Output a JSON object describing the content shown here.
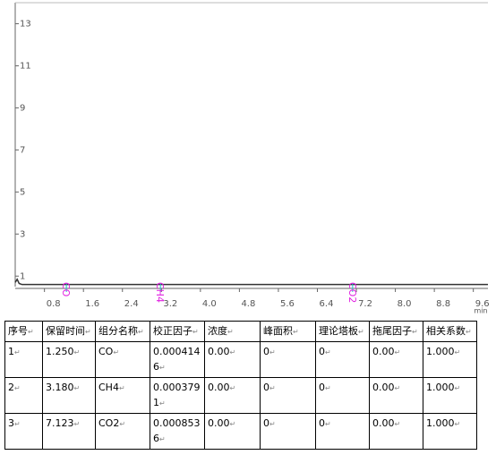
{
  "chart_data": {
    "type": "line",
    "x_label": "min",
    "xlim": [
      0.2,
      9.9
    ],
    "ylim": [
      0.5,
      14
    ],
    "xticks": [
      0.8,
      1.6,
      2.4,
      3.2,
      {
        "value": 4,
        "label": "4.0"
      },
      4.8,
      5.6,
      6.4,
      7.2,
      {
        "value": 8,
        "label": "8.0"
      },
      8.8,
      9.6
    ],
    "yticks": [
      1,
      3,
      5,
      7,
      9,
      11,
      13
    ],
    "series": [
      {
        "color": "#333333",
        "x": [
          0.2,
          0.24,
          0.28,
          0.34,
          0.5,
          1.0,
          2.0,
          3.0,
          4.0,
          5.0,
          6.0,
          7.0,
          8.0,
          9.0,
          9.9
        ],
        "values": [
          0.7,
          0.85,
          0.65,
          0.6,
          0.6,
          0.6,
          0.6,
          0.6,
          0.6,
          0.6,
          0.6,
          0.6,
          0.6,
          0.6,
          0.6
        ]
      }
    ],
    "annotations": [
      {
        "text": "CO",
        "x": 1.25
      },
      {
        "text": "CH4",
        "x": 3.18
      },
      {
        "text": "CO2",
        "x": 7.123
      }
    ],
    "annotation_color": "#e020e0",
    "marker_color": "#20c0d0"
  },
  "table": {
    "header": [
      "序号",
      "保留时间",
      "组分名称",
      "校正因子",
      "浓度",
      "峰面积",
      "理论塔板",
      "拖尾因子",
      "相关系数"
    ],
    "rows": [
      [
        "1",
        "1.250",
        "CO",
        "0.0004146",
        "0.00",
        "0",
        "0",
        "0.00",
        "1.000"
      ],
      [
        "2",
        "3.180",
        "CH4",
        "0.0003791",
        "0.00",
        "0",
        "0",
        "0.00",
        "1.000"
      ],
      [
        "3",
        "7.123",
        "CO2",
        "0.0008536",
        "0.00",
        "0",
        "0",
        "0.00",
        "1.000"
      ]
    ]
  }
}
